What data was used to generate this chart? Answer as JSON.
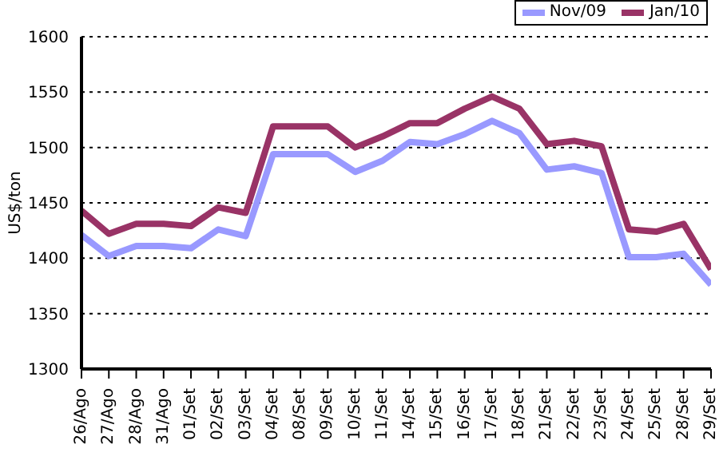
{
  "chart_data": {
    "type": "line",
    "ylabel": "US$/ton",
    "categories": [
      "26/Ago",
      "27/Ago",
      "28/Ago",
      "31/Ago",
      "01/Set",
      "02/Set",
      "03/Set",
      "04/Set",
      "08/Set",
      "09/Set",
      "10/Set",
      "11/Set",
      "14/Set",
      "15/Set",
      "16/Set",
      "17/Set",
      "18/Set",
      "21/Set",
      "22/Set",
      "23/Set",
      "24/Set",
      "25/Set",
      "28/Set",
      "29/Set"
    ],
    "series": [
      {
        "name": "Nov/09",
        "color": "#9999ff",
        "values": [
          1421,
          1402,
          1411,
          1411,
          1409,
          1426,
          1420,
          1494,
          1494,
          1494,
          1478,
          1488,
          1505,
          1503,
          1512,
          1524,
          1513,
          1480,
          1483,
          1477,
          1401,
          1401,
          1404,
          1376
        ]
      },
      {
        "name": "Jan/10",
        "color": "#993366",
        "values": [
          1443,
          1422,
          1431,
          1431,
          1429,
          1446,
          1441,
          1519,
          1519,
          1519,
          1500,
          1510,
          1522,
          1522,
          1535,
          1546,
          1535,
          1503,
          1506,
          1501,
          1426,
          1424,
          1431,
          1390
        ]
      }
    ],
    "ylim": [
      1300,
      1600
    ],
    "yticks": [
      1300,
      1350,
      1400,
      1450,
      1500,
      1550,
      1600
    ],
    "grid": "y",
    "legend": "top right",
    "marker": "none",
    "line_style": "solid"
  }
}
